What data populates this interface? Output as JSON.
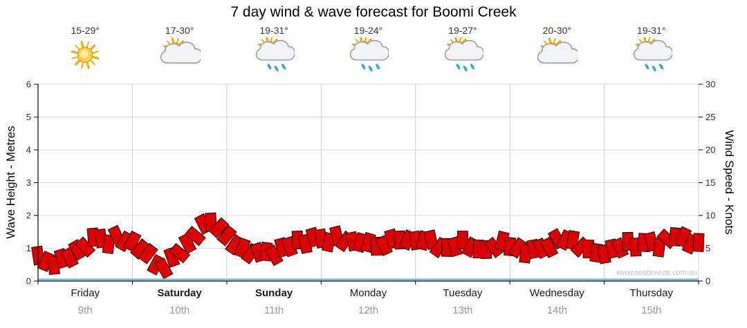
{
  "watermark": "www.seabreeze.com.au",
  "days": [
    {
      "name": "Friday",
      "date": "9th",
      "temp": "15-29°",
      "icon": "sun",
      "bold": false
    },
    {
      "name": "Saturday",
      "date": "10th",
      "temp": "17-30°",
      "icon": "sun-cloud",
      "bold": true
    },
    {
      "name": "Sunday",
      "date": "11th",
      "temp": "19-31°",
      "icon": "sun-cloud-rain",
      "bold": true
    },
    {
      "name": "Monday",
      "date": "12th",
      "temp": "19-24°",
      "icon": "sun-cloud-rain",
      "bold": false
    },
    {
      "name": "Tuesday",
      "date": "13th",
      "temp": "19-27°",
      "icon": "sun-cloud-rain",
      "bold": false
    },
    {
      "name": "Wednesday",
      "date": "14th",
      "temp": "20-30°",
      "icon": "sun-cloud",
      "bold": false
    },
    {
      "name": "Thursday",
      "date": "15th",
      "temp": "19-31°",
      "icon": "sun-cloud-rain",
      "bold": false
    }
  ],
  "chart_data": {
    "type": "area",
    "title": "7 day wind & wave forecast for Boomi Creek",
    "categories": [
      "Friday 9th",
      "Saturday 10th",
      "Sunday 11th",
      "Monday 12th",
      "Tuesday 13th",
      "Wednesday 14th",
      "Thursday 15th"
    ],
    "left_axis": {
      "label": "Wave Height - Metres",
      "range": [
        0,
        6
      ],
      "ticks": [
        0,
        1,
        2,
        3,
        4,
        5,
        6
      ]
    },
    "right_axis": {
      "label": "Wind Speed - Knots",
      "range": [
        0,
        30
      ],
      "ticks": [
        0,
        5,
        10,
        15,
        20,
        25,
        30
      ]
    },
    "grid": true,
    "legend": false,
    "series": [
      {
        "name": "Wind Speed",
        "unit": "knots",
        "axis": "right",
        "color": "#DE0000",
        "style": "flag-band",
        "points_per_day": 12,
        "values": [
          3.5,
          3.0,
          2.8,
          3.3,
          3.8,
          4.5,
          5.3,
          6.3,
          6.5,
          6.0,
          6.8,
          6.3,
          5.8,
          5.0,
          3.8,
          2.5,
          2.3,
          3.5,
          4.5,
          5.5,
          7.0,
          8.3,
          9.0,
          8.5,
          6.8,
          5.8,
          4.8,
          4.3,
          4.0,
          4.5,
          4.3,
          5.0,
          5.5,
          6.0,
          5.8,
          6.3,
          6.5,
          6.3,
          6.8,
          6.3,
          5.8,
          6.0,
          5.5,
          5.3,
          5.8,
          6.3,
          6.5,
          6.0,
          6.3,
          5.8,
          6.3,
          5.5,
          5.0,
          5.5,
          6.0,
          5.3,
          4.5,
          4.8,
          5.5,
          6.0,
          5.5,
          4.8,
          4.3,
          4.5,
          5.0,
          5.5,
          6.3,
          6.5,
          6.0,
          5.3,
          4.5,
          4.3,
          4.5,
          4.8,
          5.3,
          5.8,
          5.3,
          5.5,
          6.0,
          5.5,
          6.3,
          7.0,
          6.5,
          5.8,
          5.5
        ]
      },
      {
        "name": "Wave Height",
        "unit": "metres",
        "axis": "left",
        "color": "#5BC8DC",
        "style": "line",
        "values": [
          0.05,
          0.05,
          0.05,
          0.05,
          0.05,
          0.05,
          0.05,
          0.05
        ]
      }
    ]
  }
}
